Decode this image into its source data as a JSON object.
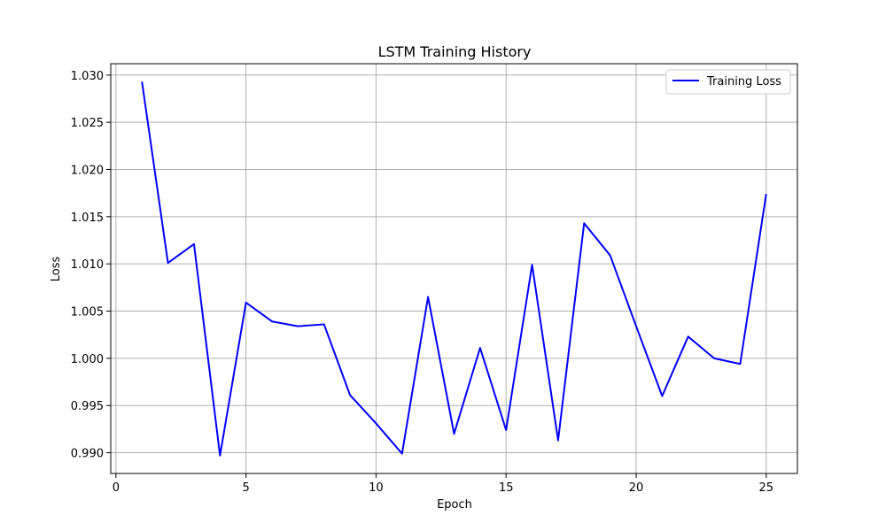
{
  "chart_data": {
    "type": "line",
    "title": "LSTM Training History",
    "xlabel": "Epoch",
    "ylabel": "Loss",
    "xlim": [
      -0.2,
      26.2
    ],
    "ylim": [
      0.9878,
      1.0312
    ],
    "xticks": [
      0,
      5,
      10,
      15,
      20,
      25
    ],
    "xtick_labels": [
      "0",
      "5",
      "10",
      "15",
      "20",
      "25"
    ],
    "yticks": [
      0.99,
      0.995,
      1.0,
      1.005,
      1.01,
      1.015,
      1.02,
      1.025,
      1.03
    ],
    "ytick_labels": [
      "0.990",
      "0.995",
      "1.000",
      "1.005",
      "1.010",
      "1.015",
      "1.020",
      "1.025",
      "1.030"
    ],
    "grid": true,
    "legend_position": "top-right",
    "series": [
      {
        "name": "Training Loss",
        "color": "#0000ff",
        "x": [
          1,
          2,
          3,
          4,
          5,
          6,
          7,
          8,
          9,
          10,
          11,
          12,
          13,
          14,
          15,
          16,
          17,
          18,
          19,
          20,
          21,
          22,
          23,
          24,
          25
        ],
        "y": [
          1.0293,
          1.0101,
          1.0121,
          0.9897,
          1.0059,
          1.0039,
          1.0034,
          1.0036,
          0.9961,
          0.9931,
          0.9899,
          1.0065,
          0.992,
          1.0011,
          0.9924,
          1.0099,
          0.9913,
          1.0143,
          1.0109,
          1.0034,
          0.996,
          1.0023,
          1.0,
          0.9994,
          1.0174
        ]
      }
    ]
  }
}
